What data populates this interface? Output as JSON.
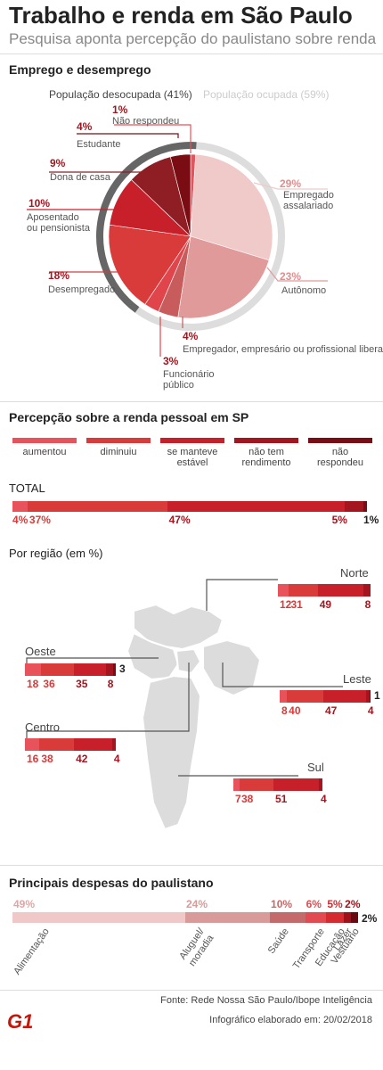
{
  "header": {
    "title": "Trabalho e renda em São Paulo",
    "subtitle": "Pesquisa aponta percepção do paulistano sobre renda"
  },
  "colors": {
    "c1": "#e8525a",
    "c2": "#d93a3a",
    "c3": "#c8202b",
    "c4": "#a3151f",
    "c5": "#7a0d14",
    "pie_light": "#f0c9c9",
    "pie_mid": "#e09a9a",
    "gray": "#666666"
  },
  "chart_data": [
    {
      "type": "pie",
      "title": "Emprego e desemprego",
      "groups": [
        {
          "label": "População desocupada (41%)"
        },
        {
          "label": "População ocupada (59%)"
        }
      ],
      "slices": [
        {
          "label": "Não respondeu",
          "pct": "1%",
          "value": 1
        },
        {
          "label": "Empregado assalariado",
          "pct": "29%",
          "value": 29
        },
        {
          "label": "Autônomo",
          "pct": "23%",
          "value": 23
        },
        {
          "label": "Empregador, empresário ou profissional liberal",
          "pct": "4%",
          "value": 4
        },
        {
          "label": "Funcionário público",
          "pct": "3%",
          "value": 3
        },
        {
          "label": "Desempregado",
          "pct": "18%",
          "value": 18
        },
        {
          "label": "Aposentado ou pensionista",
          "pct": "10%",
          "value": 10
        },
        {
          "label": "Dona de casa",
          "pct": "9%",
          "value": 9
        },
        {
          "label": "Estudante",
          "pct": "4%",
          "value": 4
        }
      ]
    },
    {
      "type": "bar",
      "title": "Percepção sobre a renda pessoal em SP",
      "legend": [
        "aumentou",
        "diminuiu",
        "se manteve estável",
        "não tem rendimento",
        "não respondeu"
      ],
      "total": {
        "label": "TOTAL",
        "values": [
          4,
          37,
          47,
          5,
          1
        ],
        "labels": [
          "4%",
          "37%",
          "47%",
          "5%",
          "1%"
        ]
      },
      "regions_title": "Por região (em %)",
      "regions": [
        {
          "name": "Norte",
          "values": [
            12,
            31,
            49,
            8
          ]
        },
        {
          "name": "Oeste",
          "values": [
            18,
            36,
            35,
            8,
            3
          ]
        },
        {
          "name": "Leste",
          "values": [
            8,
            40,
            47,
            4,
            1
          ]
        },
        {
          "name": "Centro",
          "values": [
            16,
            38,
            42,
            4
          ]
        },
        {
          "name": "Sul",
          "values": [
            7,
            38,
            51,
            4
          ]
        }
      ]
    },
    {
      "type": "bar",
      "title": "Principais despesas do paulistano",
      "categories": [
        "Alimentação",
        "Aluguel/ moradia",
        "Saúde",
        "Transporte",
        "Educação",
        "Lazer",
        "Vestuário"
      ],
      "values": [
        49,
        24,
        10,
        6,
        5,
        2,
        2
      ],
      "labels": [
        "49%",
        "24%",
        "10%",
        "6%",
        "5%",
        "2%",
        "2%"
      ]
    }
  ],
  "footer": {
    "source": "Fonte: Rede Nossa São Paulo/Ibope Inteligência",
    "date": "Infográfico elaborado em: 20/02/2018",
    "logo": "G1"
  }
}
